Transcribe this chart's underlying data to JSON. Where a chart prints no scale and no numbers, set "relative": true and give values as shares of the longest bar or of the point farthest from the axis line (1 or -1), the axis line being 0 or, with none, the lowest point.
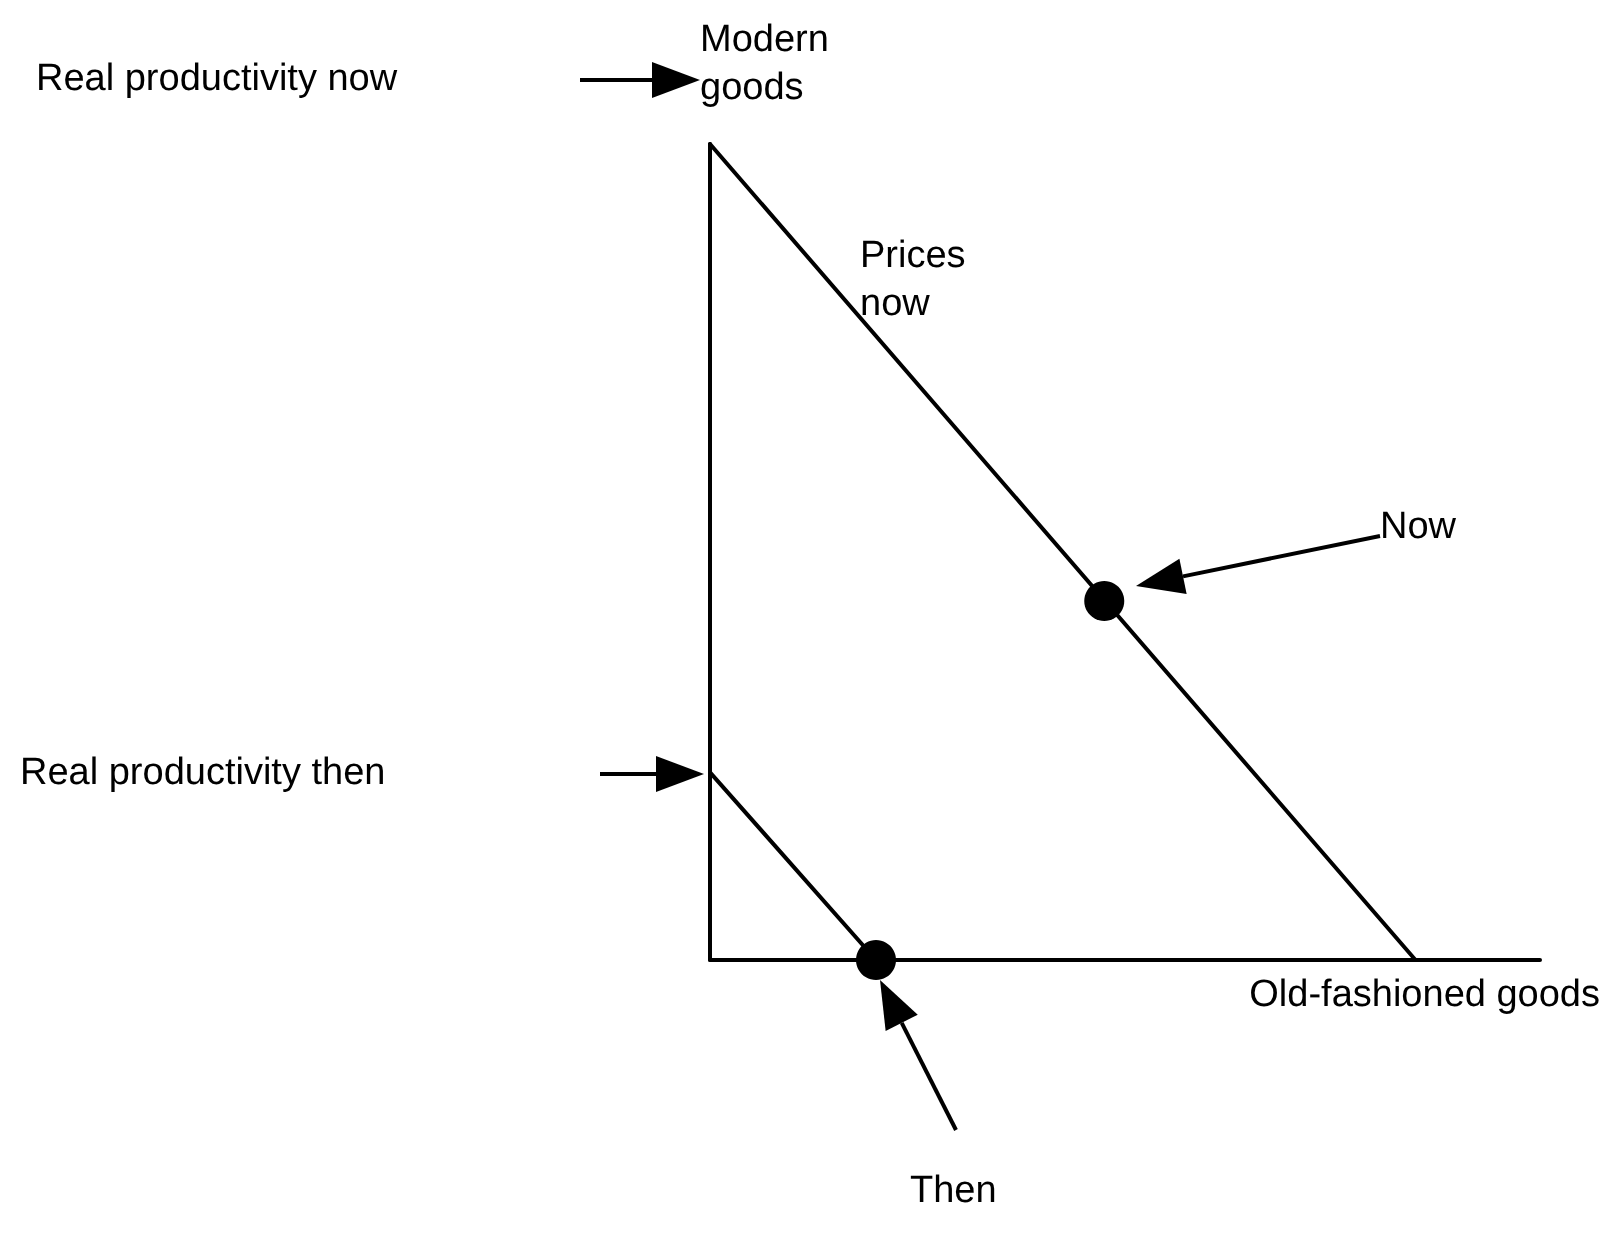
{
  "chart_data": {
    "type": "line",
    "relative": true,
    "xlabel": "Old-fashioned goods",
    "ylabel": "Modern goods",
    "grid": false,
    "legend": false,
    "line_style": "solid",
    "categories": [
      null,
      null,
      null,
      null,
      null,
      null,
      null,
      null,
      null,
      null,
      null,
      null,
      null,
      null,
      null,
      null,
      null,
      null,
      null,
      null,
      null,
      null,
      null,
      null,
      null,
      null,
      null,
      null,
      null,
      null,
      null,
      null,
      null,
      null,
      null,
      null,
      null,
      null,
      null,
      null,
      null
    ],
    "series": [
      {
        "name": "Prices now",
        "type": "line",
        "color": "#000000",
        "values": [
          1,
          null,
          null,
          null,
          null,
          null,
          null,
          null,
          null,
          null,
          null,
          null,
          null,
          null,
          null,
          null,
          null,
          null,
          null,
          null,
          null,
          null,
          null,
          null,
          null,
          null,
          null,
          null,
          null,
          null,
          null,
          null,
          null,
          null,
          0,
          null,
          null,
          null,
          null,
          null,
          null
        ]
      },
      {
        "type": "line",
        "color": "#000000",
        "values": [
          0.23,
          null,
          null,
          null,
          null,
          null,
          null,
          null,
          0,
          null,
          null,
          null,
          null,
          null,
          null,
          null,
          null,
          null,
          null,
          null,
          null,
          null,
          null,
          null,
          null,
          null,
          null,
          null,
          null,
          null,
          null,
          null,
          null,
          null,
          null,
          null,
          null,
          null,
          null,
          null,
          null
        ]
      },
      {
        "type": "line",
        "marker": "circle",
        "line_style": "none",
        "color": "#000000",
        "values": [
          null,
          null,
          null,
          null,
          null,
          null,
          null,
          null,
          0,
          null,
          null,
          null,
          null,
          null,
          null,
          null,
          null,
          null,
          null,
          0.44,
          null,
          null,
          null,
          null,
          null,
          null,
          null,
          null,
          null,
          null,
          null,
          null,
          null,
          null,
          null,
          null,
          null,
          null,
          null,
          null,
          null
        ]
      }
    ],
    "annotations": [
      "Real productivity now",
      "Real productivity then",
      "Now",
      "Then"
    ]
  }
}
